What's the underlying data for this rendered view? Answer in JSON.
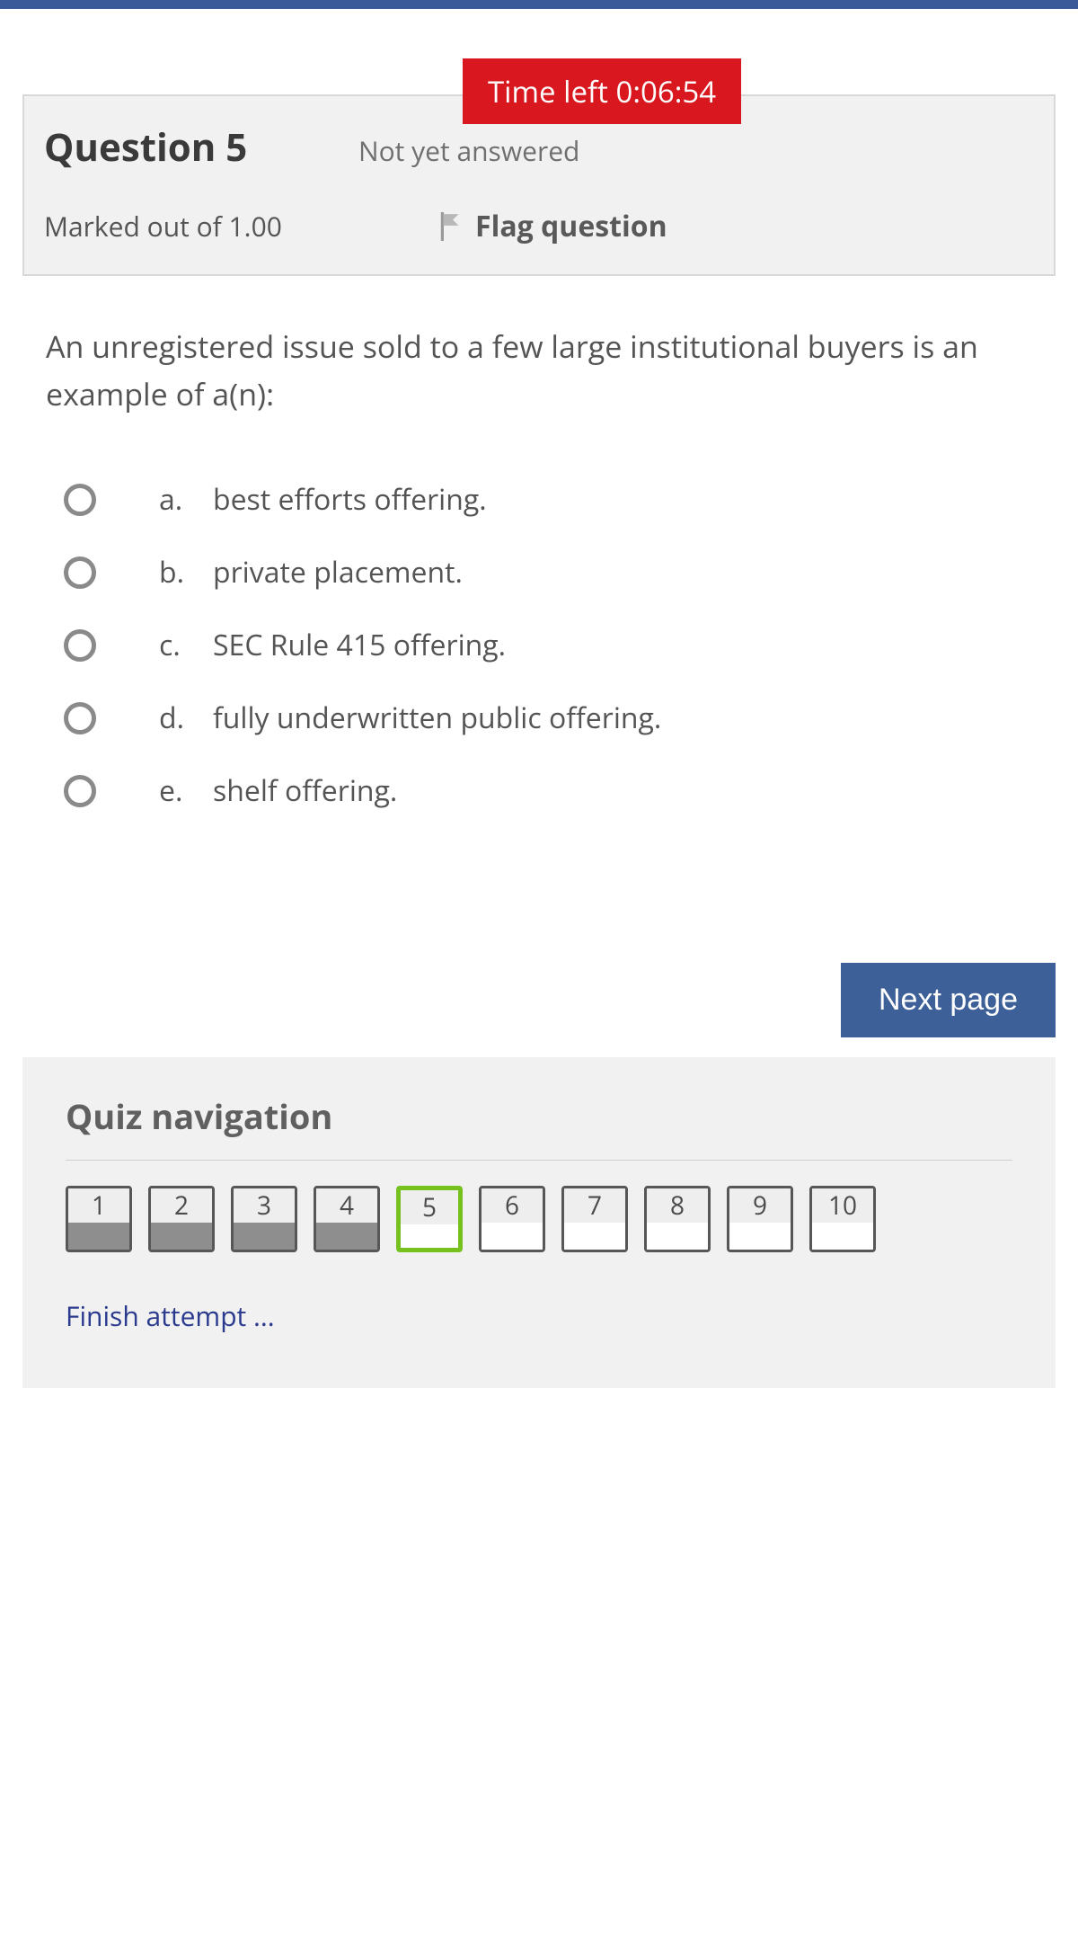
{
  "colors": {
    "top_bar": "#3a5998",
    "timer_bg": "#d9171e",
    "timer_text": "#ffffff",
    "panel_bg": "#f1f1f1",
    "panel_border": "#d8d8d8",
    "heading_text": "#3a3a3a",
    "body_text": "#545454",
    "muted_text": "#6f6f6f",
    "flag_text": "#595959",
    "radio_border": "#8a8a8a",
    "primary_btn_bg": "#3d6098",
    "primary_btn_text": "#ffffff",
    "nav_border_default": "#575757",
    "nav_border_current": "#76c11d",
    "nav_answered_fill": "#8e8e8e",
    "nav_number_bg": "#eeeeee",
    "link_color": "#2a3a8f"
  },
  "timer": {
    "label": "Time left 0:06:54"
  },
  "question_header": {
    "title": "Question 5",
    "status": "Not yet answered",
    "marks": "Marked out of 1.00",
    "flag_label": "Flag question"
  },
  "question": {
    "text": "An unregistered issue sold to a few large institutional buyers is an example of a(n):",
    "options": [
      {
        "letter": "a.",
        "text": "best efforts offering."
      },
      {
        "letter": "b.",
        "text": "private placement."
      },
      {
        "letter": "c.",
        "text": "SEC Rule 415 offering."
      },
      {
        "letter": "d.",
        "text": "fully underwritten public offering."
      },
      {
        "letter": "e.",
        "text": "shelf offering."
      }
    ]
  },
  "buttons": {
    "next": "Next page"
  },
  "quiz_nav": {
    "title": "Quiz navigation",
    "items": [
      {
        "num": "1",
        "state": "answered",
        "current": false
      },
      {
        "num": "2",
        "state": "answered",
        "current": false
      },
      {
        "num": "3",
        "state": "answered",
        "current": false
      },
      {
        "num": "4",
        "state": "answered",
        "current": false
      },
      {
        "num": "5",
        "state": "unanswered",
        "current": true
      },
      {
        "num": "6",
        "state": "unanswered",
        "current": false
      },
      {
        "num": "7",
        "state": "unanswered",
        "current": false
      },
      {
        "num": "8",
        "state": "unanswered",
        "current": false
      },
      {
        "num": "9",
        "state": "unanswered",
        "current": false
      },
      {
        "num": "10",
        "state": "unanswered",
        "current": false
      }
    ],
    "finish_label": "Finish attempt ..."
  }
}
